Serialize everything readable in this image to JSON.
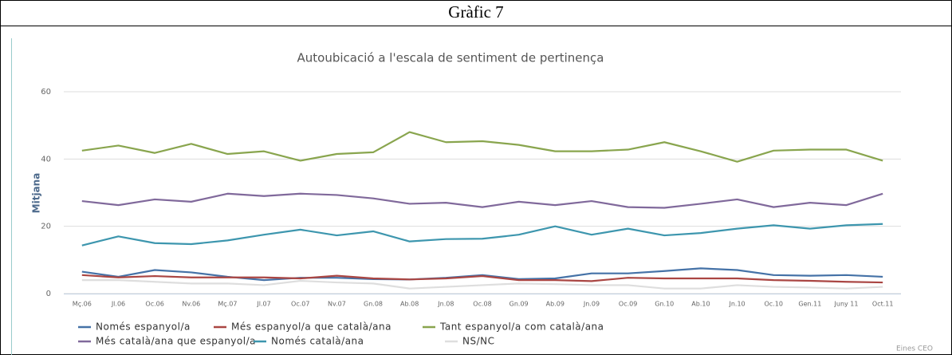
{
  "header": "Gràfic 7",
  "chart_data": {
    "type": "line",
    "title": "Autoubicació a l'escala de sentiment de pertinença",
    "y_label": "Mitjana",
    "credits": "Eines CEO",
    "categories": [
      "Mç.06",
      "Jl.06",
      "Oc.06",
      "Nv.06",
      "Mç.07",
      "Jl.07",
      "Oc.07",
      "Nv.07",
      "Gn.08",
      "Ab.08",
      "Jn.08",
      "Oc.08",
      "Gn.09",
      "Ab.09",
      "Jn.09",
      "Oc.09",
      "Gn.10",
      "Ab.10",
      "Jn.10",
      "Oc.10",
      "Gen.11",
      "Juny 11",
      "Oct.11"
    ],
    "ylim": [
      0,
      60
    ],
    "yticks": [
      0,
      20,
      40,
      60
    ],
    "grid": true,
    "series": [
      {
        "name": "Només espanyol/a",
        "color": "#4572a7",
        "values": [
          6.5,
          5,
          7,
          6.3,
          5,
          4,
          4.7,
          4.7,
          4.3,
          4.2,
          4.7,
          5.5,
          4.3,
          4.5,
          6,
          6,
          6.7,
          7.5,
          7,
          5.5,
          5.3,
          5.5,
          5
        ]
      },
      {
        "name": "Més espanyol/a que català/ana",
        "color": "#aa4643",
        "values": [
          5.5,
          4.8,
          5.2,
          4.8,
          4.8,
          4.8,
          4.5,
          5.3,
          4.5,
          4.2,
          4.5,
          5.2,
          4,
          4,
          3.7,
          4.7,
          4.5,
          4.5,
          4.5,
          4,
          3.8,
          3.5,
          3.3
        ]
      },
      {
        "name": "Tant espanyol/a com català/ana",
        "color": "#89a54e",
        "values": [
          42.5,
          44,
          41.8,
          44.5,
          41.5,
          42.3,
          39.5,
          41.5,
          42,
          48,
          45,
          45.3,
          44.2,
          42.3,
          42.3,
          42.8,
          45,
          42.3,
          39.2,
          42.5,
          42.8,
          42.8,
          39.5
        ]
      },
      {
        "name": "Més català/ana que espanyol/a",
        "color": "#80699b",
        "values": [
          27.5,
          26.3,
          28,
          27.3,
          29.7,
          29,
          29.7,
          29.3,
          28.3,
          26.7,
          27,
          25.7,
          27.3,
          26.3,
          27.5,
          25.7,
          25.5,
          26.7,
          28,
          25.7,
          27,
          26.3,
          29.7
        ]
      },
      {
        "name": "Només català/ana",
        "color": "#3d96ae",
        "values": [
          14.3,
          17,
          15,
          14.7,
          15.8,
          17.5,
          19,
          17.3,
          18.5,
          15.5,
          16.2,
          16.3,
          17.5,
          20,
          17.5,
          19.3,
          17.3,
          18,
          19.3,
          20.3,
          19.3,
          20.3,
          20.7
        ]
      },
      {
        "name": "NS/NC",
        "color": "#dedede",
        "values": [
          4,
          4,
          3.5,
          3,
          3,
          2.5,
          3.8,
          3.3,
          3,
          1.5,
          2,
          2.5,
          3,
          2.8,
          2.5,
          2.5,
          1.5,
          1.5,
          2.5,
          2,
          1.8,
          1.5,
          2
        ]
      }
    ]
  }
}
